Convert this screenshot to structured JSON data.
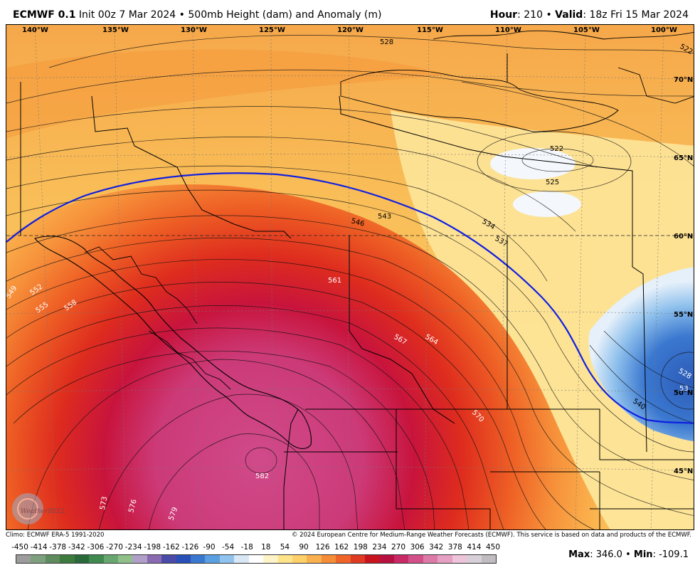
{
  "header": {
    "model": "ECMWF 0.1",
    "init": "Init 00z 7 Mar 2024",
    "product": "500mb Height (dam) and Anomaly (m)",
    "hour_label": "Hour",
    "hour_value": "210",
    "valid_label": "Valid",
    "valid_value": "18z Fri 15 Mar 2024"
  },
  "map": {
    "lon_labels": [
      "140°W",
      "135°W",
      "130°W",
      "125°W",
      "120°W",
      "115°W",
      "110°W",
      "105°W",
      "100°W"
    ],
    "lat_labels": [
      "70°N",
      "65°N",
      "60°N",
      "55°N",
      "50°N",
      "45°N"
    ],
    "contour_labels_white": [
      "549",
      "552",
      "555",
      "558",
      "561",
      "564",
      "567",
      "570",
      "573",
      "576",
      "579",
      "582",
      "528",
      "53"
    ],
    "contour_labels_dark": [
      "528",
      "522",
      "525",
      "534",
      "537",
      "543",
      "546",
      "540",
      "522"
    ],
    "watermark": "WeatherBELL"
  },
  "credits": {
    "climo": "Climo: ECMWF ERA-5 1991-2020",
    "copyright": "© 2024 European Centre for Medium-Range Weather Forecasts (ECMWF). This service is based on data and products of the ECMWF."
  },
  "colorbar": {
    "labels": [
      "-450",
      "-414",
      "-378",
      "-342",
      "-306",
      "-270",
      "-234",
      "-198",
      "-162",
      "-126",
      "-90",
      "-54",
      "-18",
      "18",
      "54",
      "90",
      "126",
      "162",
      "198",
      "234",
      "270",
      "306",
      "342",
      "378",
      "414",
      "450"
    ],
    "colors": [
      "#9c9c9c",
      "#7fa07f",
      "#5e8c5e",
      "#3d7a3d",
      "#2a6a3a",
      "#3f8a50",
      "#68a870",
      "#8fc08a",
      "#b0a0c8",
      "#8a6ab0",
      "#4a4aa8",
      "#2850b8",
      "#3a78d0",
      "#5aa0e0",
      "#90c4ef",
      "#d8e8f6",
      "#ffffff",
      "#fff4c8",
      "#ffe48a",
      "#fdd06a",
      "#f9b04e",
      "#f58c38",
      "#ef6428",
      "#e03a22",
      "#c8141e",
      "#b81040",
      "#c82a66",
      "#d2508a",
      "#dc7aa8",
      "#e6a0c4",
      "#eec4da",
      "#d8d0d8",
      "#c0bcc0"
    ]
  },
  "stats": {
    "max_label": "Max",
    "max_value": "346.0",
    "min_label": "Min",
    "min_value": "-109.1"
  }
}
